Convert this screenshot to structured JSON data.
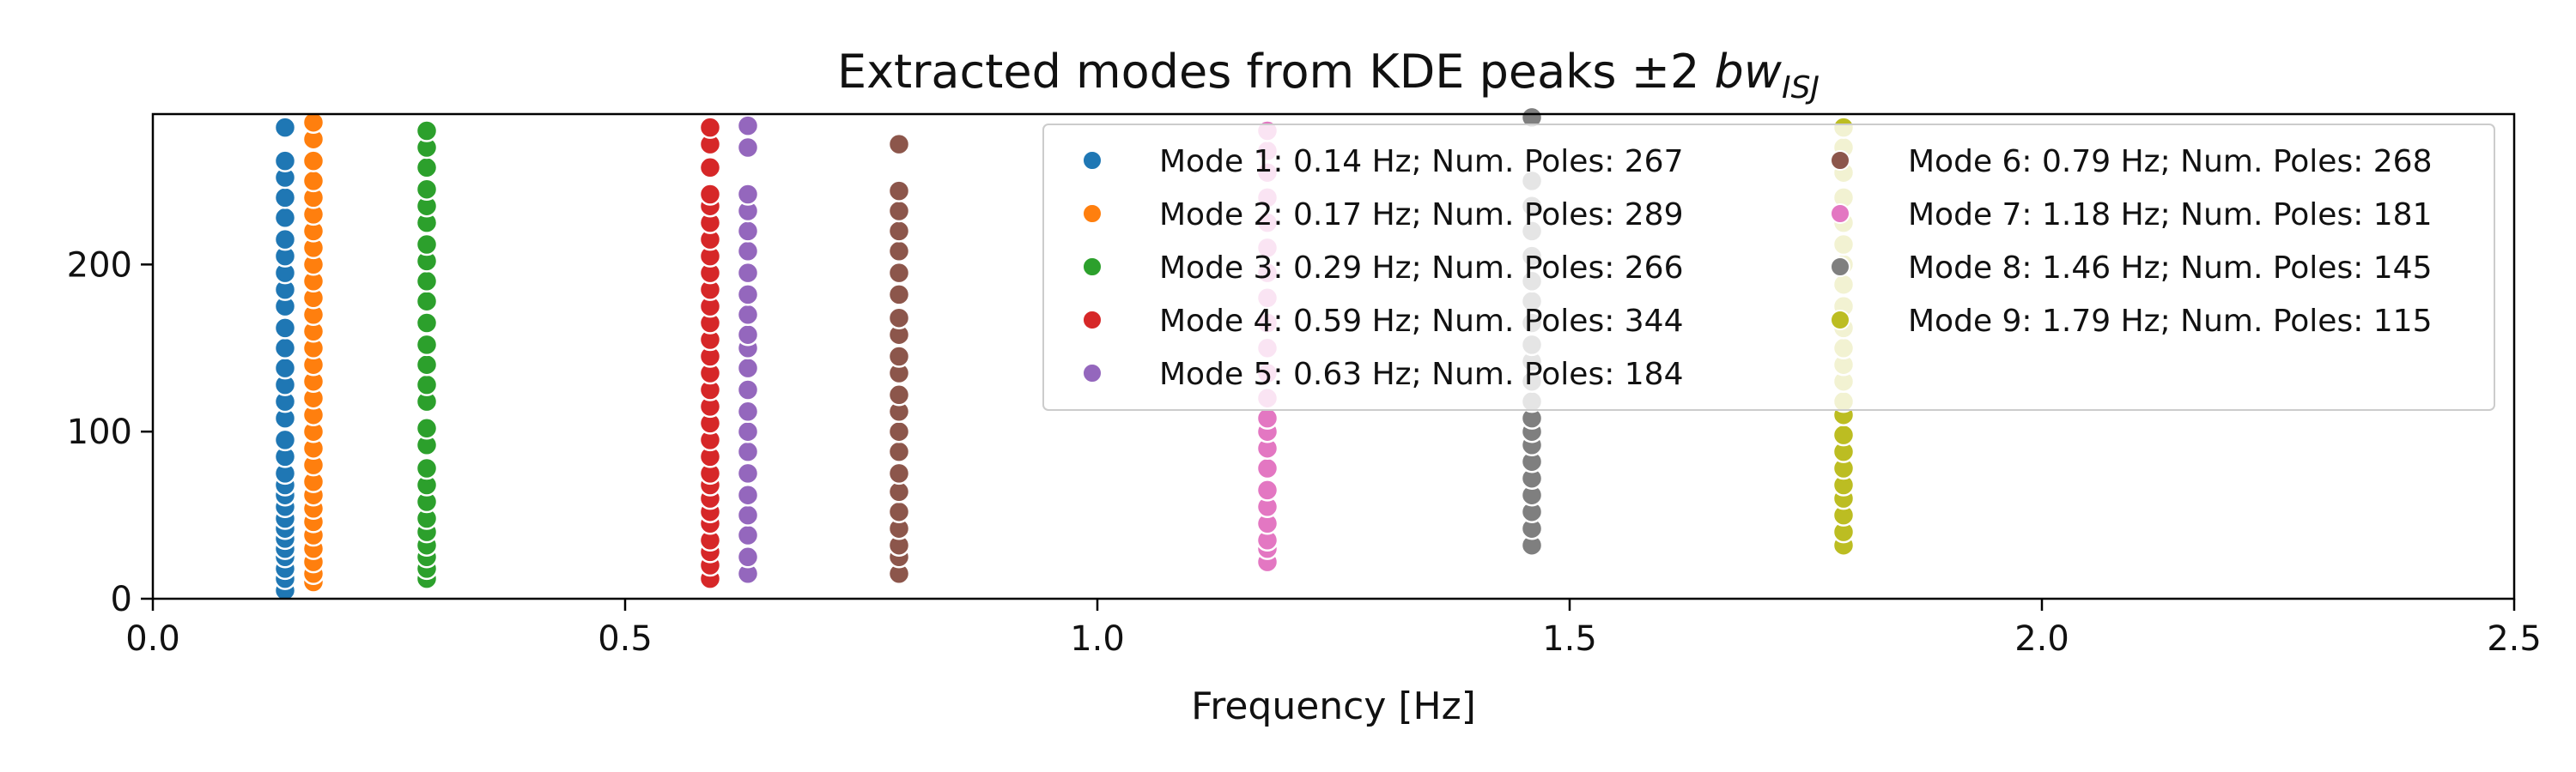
{
  "chart_data": {
    "type": "scatter",
    "title": "Extracted modes from KDE peaks ±2 ",
    "title_math_base": "bw",
    "title_math_sub": "ISJ",
    "xlabel": "Frequency [Hz]",
    "ylabel": "",
    "xlim": [
      0,
      2.5
    ],
    "ylim": [
      0,
      290
    ],
    "xticks": [
      0.0,
      0.5,
      1.0,
      1.5,
      2.0,
      2.5
    ],
    "xtick_labels": [
      "0.0",
      "0.5",
      "1.0",
      "1.5",
      "2.0",
      "2.5"
    ],
    "yticks": [
      0,
      100,
      200
    ],
    "ytick_labels": [
      "0",
      "100",
      "200"
    ],
    "grid": false,
    "legend_placement": "top-right",
    "legend_columns": 2,
    "series": [
      {
        "name": "Mode 1: 0.14 Hz; Num. Poles: 267",
        "color": "#1f77b4",
        "x": 0.14,
        "y": [
          5,
          12,
          18,
          25,
          30,
          36,
          42,
          48,
          55,
          62,
          68,
          75,
          85,
          95,
          108,
          118,
          128,
          138,
          150,
          162,
          175,
          185,
          195,
          205,
          215,
          228,
          240,
          252,
          262,
          282
        ]
      },
      {
        "name": "Mode 2: 0.17 Hz; Num. Poles: 289",
        "color": "#ff7f0e",
        "x": 0.17,
        "y": [
          10,
          15,
          22,
          30,
          38,
          46,
          54,
          62,
          70,
          80,
          90,
          100,
          110,
          120,
          130,
          140,
          150,
          160,
          170,
          180,
          190,
          200,
          210,
          220,
          230,
          240,
          250,
          262,
          275,
          285
        ]
      },
      {
        "name": "Mode 3: 0.29 Hz; Num. Poles: 266",
        "color": "#2ca02c",
        "x": 0.29,
        "y": [
          12,
          18,
          25,
          32,
          40,
          48,
          58,
          68,
          78,
          92,
          102,
          118,
          128,
          140,
          152,
          165,
          178,
          190,
          202,
          212,
          225,
          235,
          245,
          258,
          270,
          280
        ]
      },
      {
        "name": "Mode 4: 0.59 Hz; Num. Poles: 344",
        "color": "#d62728",
        "x": 0.59,
        "y": [
          12,
          20,
          28,
          35,
          45,
          52,
          60,
          68,
          75,
          85,
          95,
          105,
          115,
          125,
          135,
          145,
          155,
          165,
          175,
          185,
          195,
          205,
          215,
          225,
          235,
          242,
          258,
          272,
          282
        ]
      },
      {
        "name": "Mode 5: 0.63 Hz; Num. Poles: 184",
        "color": "#9467bd",
        "x": 0.63,
        "y": [
          15,
          25,
          38,
          50,
          62,
          75,
          88,
          100,
          112,
          125,
          138,
          150,
          158,
          170,
          182,
          195,
          208,
          220,
          232,
          242,
          270,
          283
        ]
      },
      {
        "name": "Mode 6: 0.79 Hz; Num. Poles: 268",
        "color": "#8c564b",
        "x": 0.79,
        "y": [
          15,
          25,
          32,
          42,
          52,
          64,
          75,
          88,
          100,
          112,
          122,
          135,
          145,
          158,
          168,
          182,
          195,
          208,
          220,
          232,
          244,
          272
        ]
      },
      {
        "name": "Mode 7: 1.18 Hz; Num. Poles: 181",
        "color": "#e377c2",
        "x": 1.18,
        "y": [
          22,
          30,
          35,
          45,
          55,
          65,
          78,
          90,
          100,
          108,
          120,
          135,
          150,
          165,
          180,
          195,
          210,
          225,
          240,
          255,
          268,
          280
        ]
      },
      {
        "name": "Mode 8: 1.46 Hz; Num. Poles: 145",
        "color": "#7f7f7f",
        "x": 1.46,
        "y": [
          32,
          42,
          52,
          62,
          72,
          82,
          92,
          100,
          108,
          118,
          130,
          142,
          152,
          165,
          178,
          190,
          205,
          220,
          235,
          250,
          288
        ]
      },
      {
        "name": "Mode 9: 1.79 Hz; Num. Poles: 115",
        "color": "#bcbd22",
        "x": 1.79,
        "y": [
          32,
          40,
          50,
          60,
          68,
          78,
          88,
          98,
          110,
          118,
          130,
          140,
          150,
          162,
          175,
          188,
          200,
          212,
          225,
          240,
          255,
          270,
          282
        ]
      }
    ]
  }
}
